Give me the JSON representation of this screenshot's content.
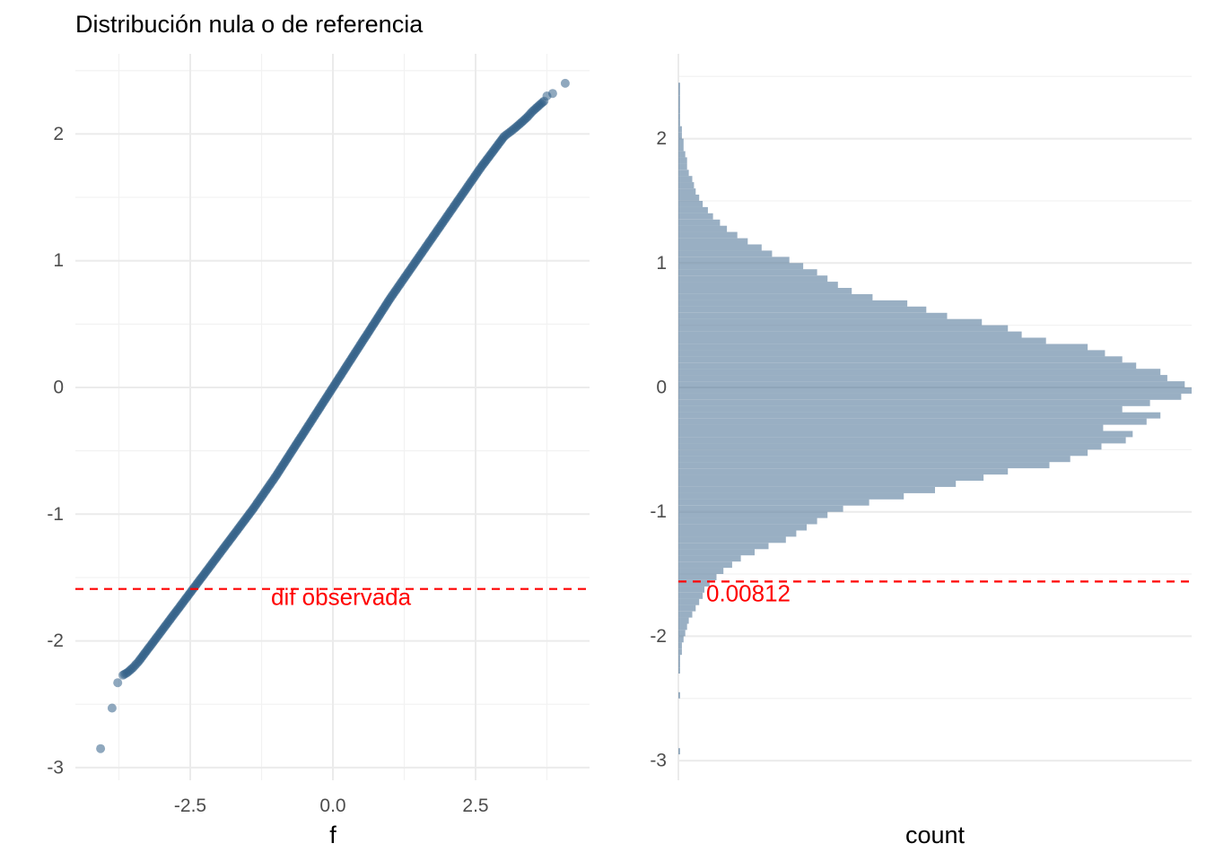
{
  "title": "Distribución nula o de referencia",
  "colors": {
    "points": "#336088",
    "bars": "#336088",
    "reference_line": "#ff0000"
  },
  "chart_data": [
    {
      "type": "scatter",
      "xlabel": "f",
      "ylabel": "",
      "xlim": [
        -4.2,
        4.2
      ],
      "ylim": [
        -3.0,
        2.45
      ],
      "xticks": [
        "-2.5",
        "0.0",
        "2.5"
      ],
      "yticks": [
        "2",
        "1",
        "0",
        "-1",
        "-2",
        "-3"
      ],
      "grid": true,
      "series": [
        {
          "description": "sorted null differences vs normal quantiles (dense line, slope ≈ 0.565, intercept ≈ 0.0)",
          "x": [
            -4.07,
            -3.87,
            -3.77,
            -3.68,
            -3.6,
            -3.5,
            -3.4,
            -3.3,
            -3.2,
            -3.1,
            -3.0,
            -2.9,
            -2.8,
            -2.7,
            -2.6,
            -2.5,
            -2.4,
            -2.2,
            -2.0,
            -1.8,
            -1.6,
            -1.4,
            -1.2,
            -1.0,
            -0.8,
            -0.6,
            -0.4,
            -0.2,
            0.0,
            0.2,
            0.4,
            0.6,
            0.8,
            1.0,
            1.2,
            1.4,
            1.6,
            1.8,
            2.0,
            2.2,
            2.4,
            2.6,
            2.8,
            3.0,
            3.2,
            3.3,
            3.4,
            3.5,
            3.6,
            3.7,
            3.75,
            3.85,
            4.07
          ],
          "y": [
            -2.85,
            -2.53,
            -2.33,
            -2.27,
            -2.25,
            -2.21,
            -2.16,
            -2.1,
            -2.04,
            -1.98,
            -1.92,
            -1.86,
            -1.8,
            -1.74,
            -1.68,
            -1.62,
            -1.56,
            -1.44,
            -1.32,
            -1.2,
            -1.08,
            -0.96,
            -0.83,
            -0.7,
            -0.56,
            -0.42,
            -0.28,
            -0.14,
            0.0,
            0.14,
            0.28,
            0.42,
            0.56,
            0.7,
            0.83,
            0.96,
            1.09,
            1.22,
            1.35,
            1.48,
            1.61,
            1.74,
            1.86,
            1.98,
            2.05,
            2.09,
            2.13,
            2.18,
            2.22,
            2.26,
            2.3,
            2.32,
            2.4
          ]
        }
      ],
      "reference_line": {
        "y": -1.59,
        "label": "dif observada"
      }
    },
    {
      "type": "bar",
      "orientation": "horizontal",
      "xlabel": "count",
      "ylabel": "",
      "ylim": [
        -3.2,
        2.45
      ],
      "yticks": [
        "2",
        "1",
        "0",
        "-1",
        "-2",
        "-3"
      ],
      "grid": true,
      "bins": {
        "y_low": [
          -2.95,
          -2.9,
          -2.85,
          -2.8,
          -2.75,
          -2.7,
          -2.65,
          -2.6,
          -2.55,
          -2.5,
          -2.45,
          -2.4,
          -2.35,
          -2.3,
          -2.25,
          -2.2,
          -2.15,
          -2.1,
          -2.05,
          -2.0,
          -1.95,
          -1.9,
          -1.85,
          -1.8,
          -1.75,
          -1.7,
          -1.65,
          -1.6,
          -1.55,
          -1.5,
          -1.45,
          -1.4,
          -1.35,
          -1.3,
          -1.25,
          -1.2,
          -1.15,
          -1.1,
          -1.05,
          -1.0,
          -0.95,
          -0.9,
          -0.85,
          -0.8,
          -0.75,
          -0.7,
          -0.65,
          -0.6,
          -0.55,
          -0.5,
          -0.45,
          -0.4,
          -0.35,
          -0.3,
          -0.25,
          -0.2,
          -0.15,
          -0.1,
          -0.05,
          0.0,
          0.05,
          0.1,
          0.15,
          0.2,
          0.25,
          0.3,
          0.35,
          0.4,
          0.45,
          0.5,
          0.55,
          0.6,
          0.65,
          0.7,
          0.75,
          0.8,
          0.85,
          0.9,
          0.95,
          1.0,
          1.05,
          1.1,
          1.15,
          1.2,
          1.25,
          1.3,
          1.35,
          1.4,
          1.45,
          1.5,
          1.55,
          1.6,
          1.65,
          1.7,
          1.75,
          1.8,
          1.85,
          1.9,
          1.95,
          2.0,
          2.05,
          2.1,
          2.15,
          2.2,
          2.25,
          2.3,
          2.35,
          2.4
        ],
        "count": [
          1,
          0,
          0,
          0,
          0,
          0,
          0,
          0,
          0,
          1,
          0,
          0,
          0,
          1,
          1,
          1,
          2,
          2,
          3,
          4,
          5,
          6,
          8,
          10,
          12,
          14,
          15,
          18,
          22,
          26,
          31,
          36,
          44,
          52,
          62,
          68,
          74,
          80,
          86,
          95,
          110,
          130,
          148,
          160,
          176,
          190,
          214,
          226,
          236,
          244,
          258,
          262,
          245,
          270,
          278,
          256,
          272,
          290,
          296,
          292,
          282,
          278,
          264,
          256,
          246,
          236,
          212,
          198,
          190,
          175,
          155,
          143,
          132,
          112,
          100,
          92,
          86,
          80,
          72,
          64,
          54,
          48,
          40,
          34,
          28,
          24,
          20,
          17,
          14,
          12,
          10,
          9,
          8,
          6,
          5,
          5,
          4,
          3,
          3,
          2,
          2,
          1,
          1,
          1,
          1,
          1,
          1,
          1
        ]
      },
      "reference_line": {
        "y": -1.56,
        "label": "0.00812"
      }
    }
  ]
}
